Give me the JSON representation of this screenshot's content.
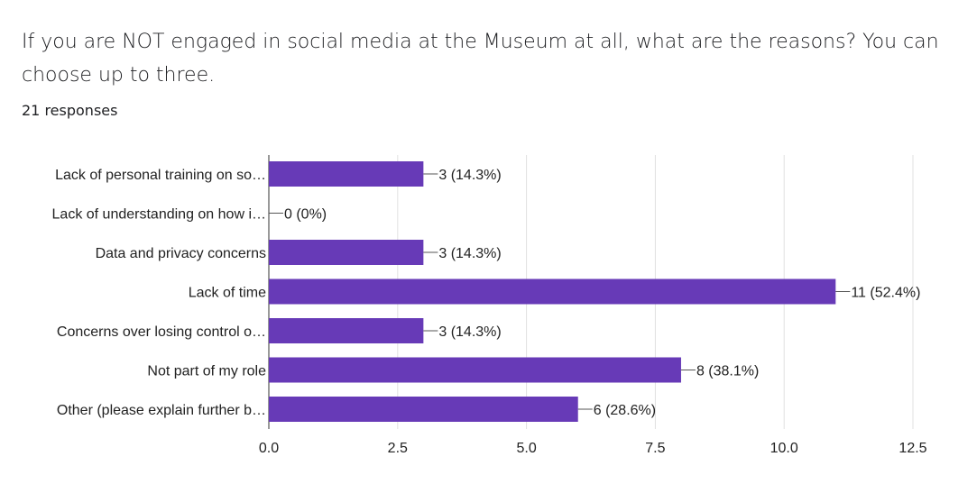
{
  "question": "If you are NOT engaged in social media at the Museum at all, what are the reasons? You can choose up to three.",
  "responses": "21 responses",
  "chart_data": {
    "type": "bar",
    "orientation": "horizontal",
    "categories": [
      "Lack of personal training on so…",
      "Lack of understanding on how i…",
      "Data and privacy concerns",
      "Lack of time",
      "Concerns over losing control o…",
      "Not part of my role",
      "Other (please explain further b…"
    ],
    "values": [
      3,
      0,
      3,
      11,
      3,
      8,
      6
    ],
    "data_labels": [
      "3 (14.3%)",
      "0 (0%)",
      "3 (14.3%)",
      "11 (52.4%)",
      "3 (14.3%)",
      "8 (38.1%)",
      "6 (28.6%)"
    ],
    "xlim": [
      0,
      12.5
    ],
    "x_ticks": [
      "0.0",
      "2.5",
      "5.0",
      "7.5",
      "10.0",
      "12.5"
    ],
    "grid": true,
    "bar_color": "#673ab7"
  }
}
